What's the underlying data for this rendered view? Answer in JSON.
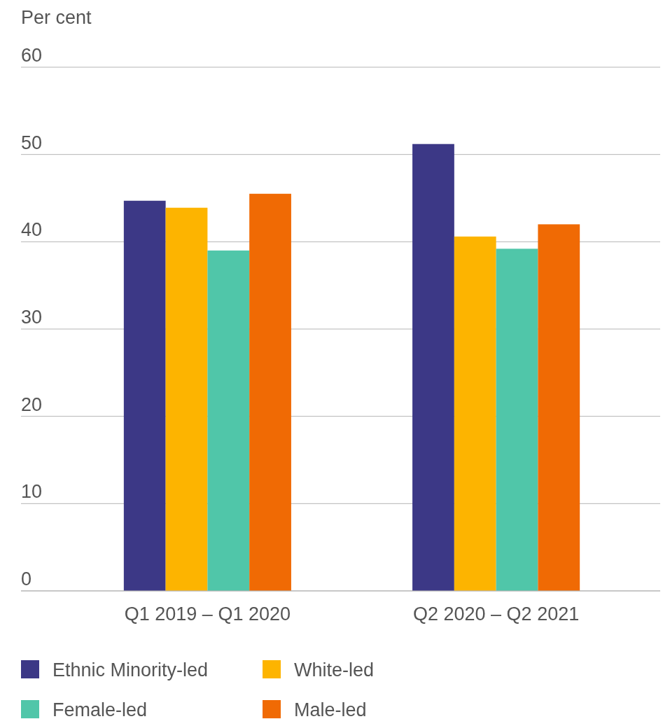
{
  "chart_data": {
    "type": "bar",
    "ylabel": "Per cent",
    "categories": [
      "Q1 2019 – Q1 2020",
      "Q2 2020 – Q2 2021"
    ],
    "series": [
      {
        "name": "Ethnic Minority-led",
        "color": "#3c3886",
        "values": [
          44.7,
          51.2
        ]
      },
      {
        "name": "White-led",
        "color": "#fdb400",
        "values": [
          43.9,
          40.6
        ]
      },
      {
        "name": "Female-led",
        "color": "#50c6a9",
        "values": [
          39.0,
          39.2
        ]
      },
      {
        "name": "Male-led",
        "color": "#f06a04",
        "values": [
          45.5,
          42.0
        ]
      }
    ],
    "ylim": [
      0,
      60
    ],
    "yticks": [
      0,
      10,
      20,
      30,
      40,
      50,
      60
    ],
    "grid": "y",
    "legend": "bottom"
  }
}
